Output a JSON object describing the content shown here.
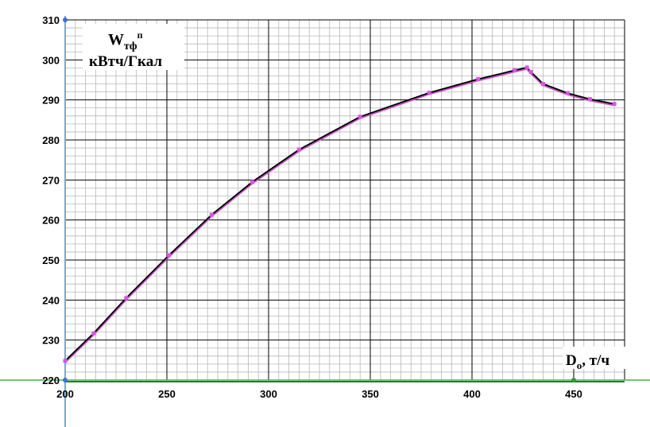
{
  "chart_data": {
    "type": "line",
    "ylabel_main": "W",
    "ylabel_sub": "тф",
    "ylabel_sup": "п",
    "ylabel_units": "кВтч/Гкал",
    "xlabel_main": "D",
    "xlabel_sub": "о",
    "xlabel_units": ", т/ч",
    "xlim": [
      200,
      475
    ],
    "ylim": [
      220,
      310
    ],
    "x_ticks": [
      200,
      250,
      300,
      350,
      400,
      450
    ],
    "y_ticks": [
      220,
      230,
      240,
      250,
      260,
      270,
      280,
      290,
      300,
      310
    ],
    "grid": true,
    "series": [
      {
        "color": "#000000",
        "marker_color": "#d955e6",
        "x": [
          200,
          214,
          230,
          251,
          272,
          292,
          315,
          345,
          379,
          403,
          421,
          427,
          429,
          435,
          447,
          458,
          470
        ],
        "y": [
          224.8,
          231.7,
          240.5,
          251.2,
          261.3,
          269.5,
          277.6,
          285.8,
          291.8,
          295.2,
          297.4,
          298.1,
          297.0,
          294.0,
          291.7,
          290.2,
          289.0
        ]
      }
    ],
    "colors": {
      "major_grid": "#000000",
      "minor_grid": "#b8b8b8",
      "axis_highlight": "#4caf50",
      "y_axis": "#7aa6d6",
      "curve_shadow": "#c050c0"
    }
  }
}
